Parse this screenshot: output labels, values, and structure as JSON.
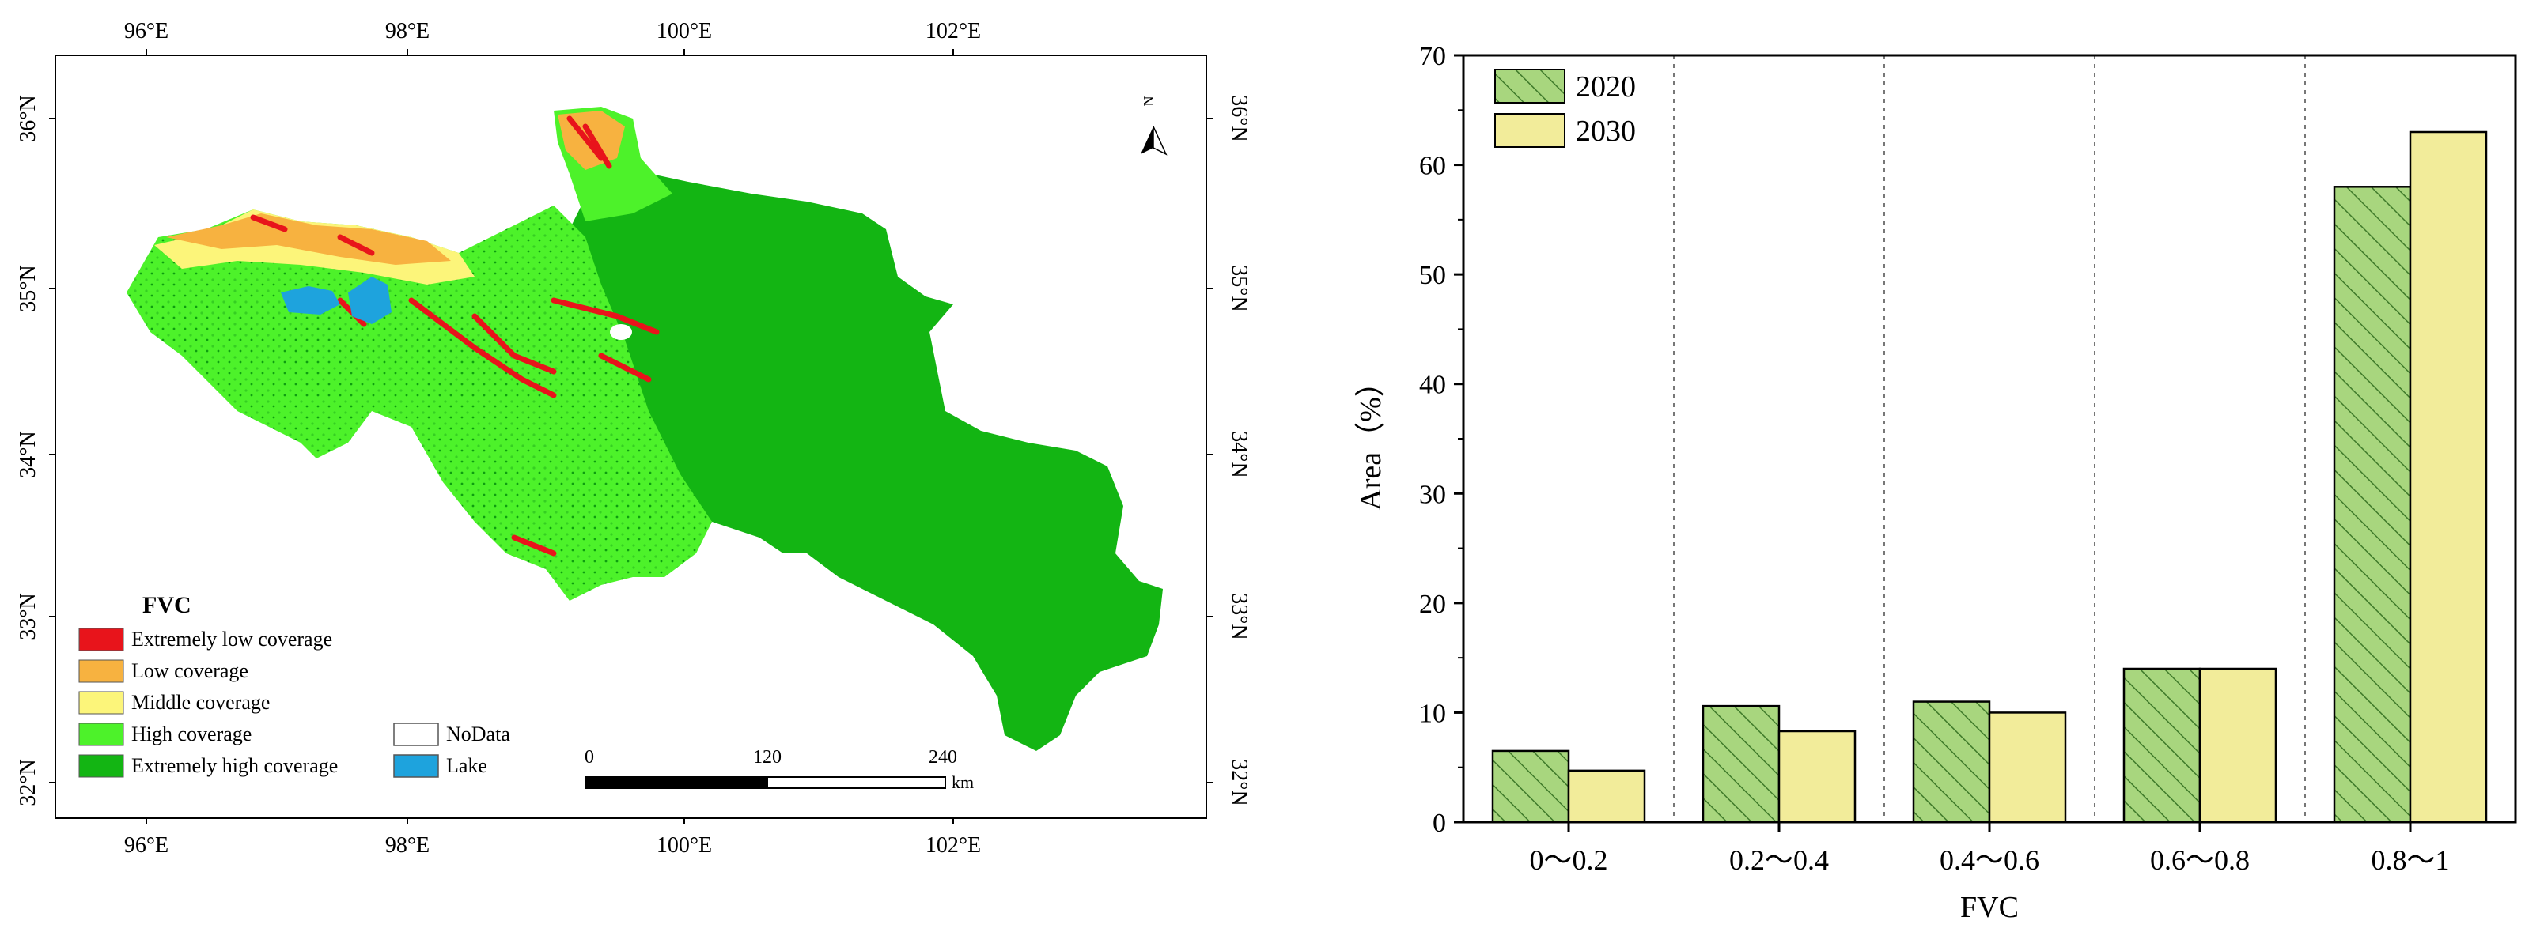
{
  "map": {
    "lon_ticks": [
      "96°E",
      "98°E",
      "100°E",
      "102°E"
    ],
    "lat_ticks": [
      "36°N",
      "35°N",
      "34°N",
      "33°N",
      "32°N"
    ],
    "north_label": "N",
    "legend_title": "FVC",
    "legend": [
      {
        "label": "Extremely low coverage",
        "color": "#e8141b"
      },
      {
        "label": "Low coverage",
        "color": "#f7b240"
      },
      {
        "label": "Middle coverage",
        "color": "#fcf57a"
      },
      {
        "label": "High coverage",
        "color": "#4df22a"
      },
      {
        "label": "Extremely high coverage",
        "color": "#13b513"
      }
    ],
    "legend_extra": [
      {
        "label": "NoData",
        "color": "#ffffff"
      },
      {
        "label": "Lake",
        "color": "#1ea3dd"
      }
    ],
    "scale_ticks": [
      "0",
      "120",
      "240"
    ],
    "scale_unit": "km"
  },
  "chart_data": {
    "type": "bar",
    "categories": [
      "0～0.2",
      "0.2～0.4",
      "0.4～0.6",
      "0.6～0.8",
      "0.8～1"
    ],
    "series": [
      {
        "name": "2020",
        "values": [
          6.5,
          10.6,
          11.0,
          14.0,
          58.0
        ],
        "color": "#a8d67e",
        "hatch": true
      },
      {
        "name": "2030",
        "values": [
          4.7,
          8.3,
          10.0,
          14.0,
          63.0
        ],
        "color": "#f2ec9a",
        "hatch": false
      }
    ],
    "xlabel": "FVC",
    "ylabel": "Area（%）",
    "ylim": [
      0,
      70
    ],
    "yticks": [
      0,
      10,
      20,
      30,
      40,
      50,
      60,
      70
    ],
    "legend_position": "top-left",
    "separators": "dotted"
  }
}
